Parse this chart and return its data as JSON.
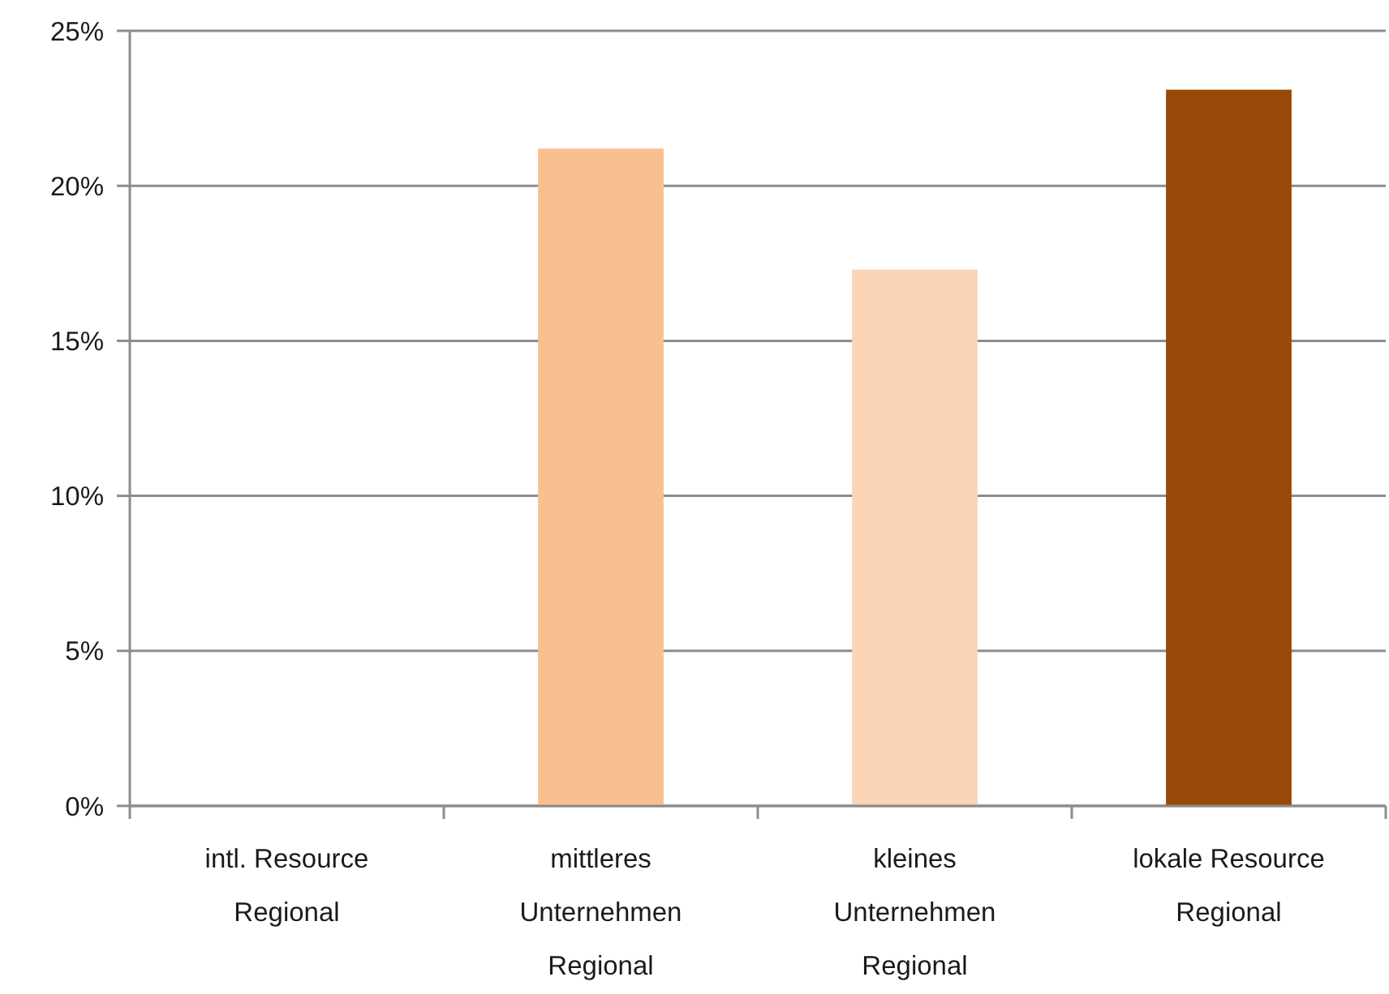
{
  "chart_data": {
    "type": "bar",
    "categories": [
      "intl. Resource Regional",
      "mittleres Unternehmen Regional",
      "kleines Unternehmen Regional",
      "lokale Resource Regional"
    ],
    "values": [
      0,
      21.2,
      17.3,
      23.1
    ],
    "colors": [
      null,
      "#f9c08f",
      "#fbd5b5",
      "#984807"
    ],
    "ylim": [
      0,
      25
    ],
    "yticks": [
      {
        "value": 0,
        "label": "0%"
      },
      {
        "value": 5,
        "label": "5%"
      },
      {
        "value": 10,
        "label": "10%"
      },
      {
        "value": 15,
        "label": "15%"
      },
      {
        "value": 20,
        "label": "20%"
      },
      {
        "value": 25,
        "label": "25%"
      }
    ],
    "grid": "y"
  }
}
